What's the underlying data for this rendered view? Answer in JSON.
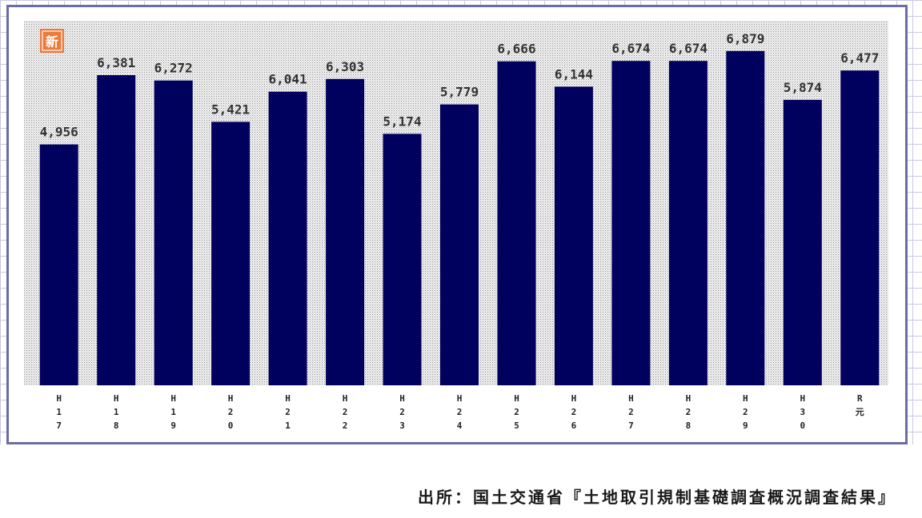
{
  "chart_data": {
    "type": "bar",
    "categories": [
      "H17",
      "H18",
      "H19",
      "H20",
      "H21",
      "H22",
      "H23",
      "H24",
      "H25",
      "H26",
      "H27",
      "H28",
      "H29",
      "H30",
      "R元"
    ],
    "category_ticks": [
      [
        "H",
        "1",
        "7"
      ],
      [
        "H",
        "1",
        "8"
      ],
      [
        "H",
        "1",
        "9"
      ],
      [
        "H",
        "2",
        "0"
      ],
      [
        "H",
        "2",
        "1"
      ],
      [
        "H",
        "2",
        "2"
      ],
      [
        "H",
        "2",
        "3"
      ],
      [
        "H",
        "2",
        "4"
      ],
      [
        "H",
        "2",
        "5"
      ],
      [
        "H",
        "2",
        "6"
      ],
      [
        "H",
        "2",
        "7"
      ],
      [
        "H",
        "2",
        "8"
      ],
      [
        "H",
        "2",
        "9"
      ],
      [
        "H",
        "3",
        "0"
      ],
      [
        "R",
        "元"
      ]
    ],
    "values": [
      4956,
      6381,
      6272,
      5421,
      6041,
      6303,
      5174,
      5779,
      6666,
      6144,
      6674,
      6674,
      6879,
      5874,
      6477
    ],
    "value_labels": [
      "4,956",
      "6,381",
      "6,272",
      "5,421",
      "6,041",
      "6,303",
      "5,174",
      "5,779",
      "6,666",
      "6,144",
      "6,674",
      "6,674",
      "6,879",
      "5,874",
      "6,477"
    ],
    "ylim": [
      0,
      7500
    ],
    "grid": false,
    "legend": "none",
    "bar_color": "#00005e",
    "plot_background": "dotted-grey",
    "badge": {
      "text": "新",
      "color": "#ee7a3a"
    }
  },
  "source": "出所：国土交通省『土地取引規制基礎調査概況調査結果』"
}
